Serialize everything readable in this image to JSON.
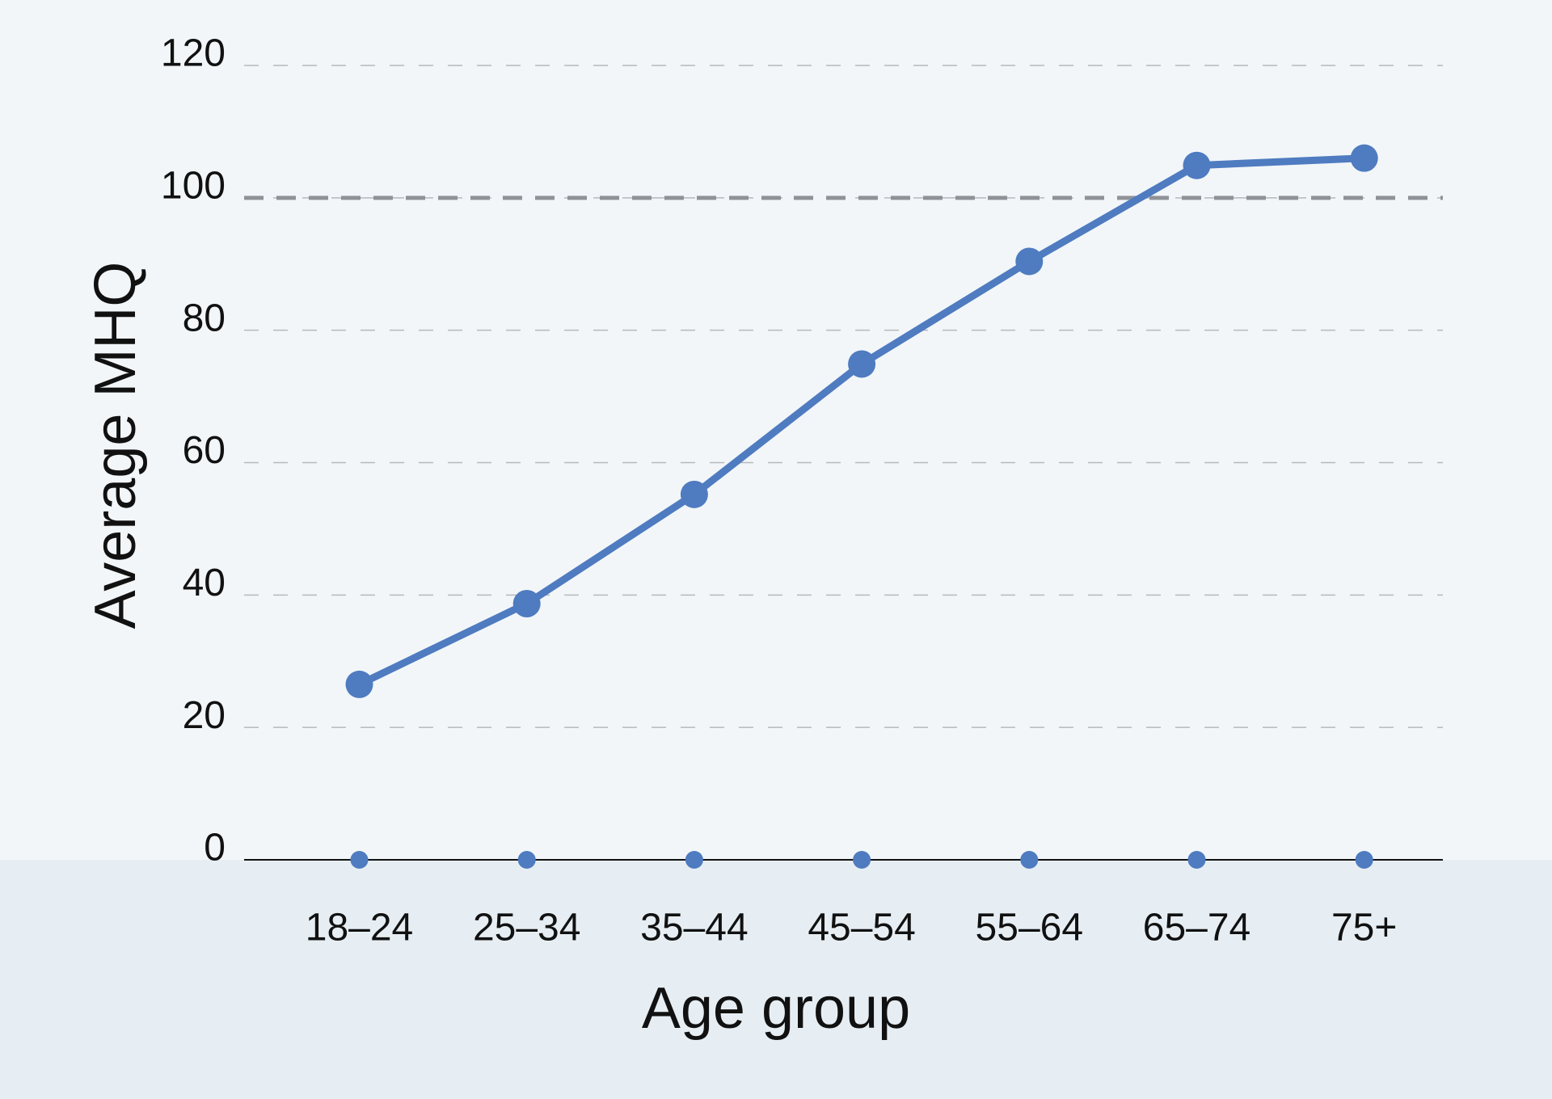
{
  "chart_data": {
    "type": "line",
    "x_label": "Age group",
    "y_label": "Average MHQ",
    "categories": [
      "18–24",
      "25–34",
      "35–44",
      "45–54",
      "55–64",
      "65–74",
      "75+"
    ],
    "series": [
      {
        "color": "#4f7bc0",
        "values": [
          26.5,
          38.7,
          55.2,
          74.9,
          90.4,
          104.9,
          106.0
        ]
      },
      {
        "color": "#4f7bc0",
        "values": [
          0,
          0,
          0,
          0,
          0,
          0,
          0
        ]
      }
    ],
    "ylim": [
      0,
      120
    ],
    "yticks": [
      0,
      20,
      40,
      60,
      80,
      100,
      120
    ],
    "grid": true,
    "reference_line": 100
  }
}
